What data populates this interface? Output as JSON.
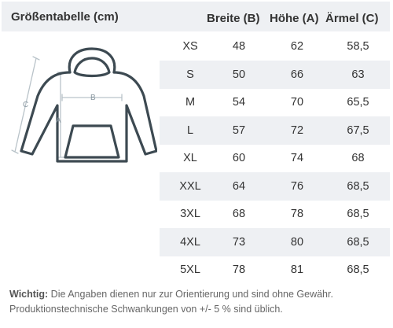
{
  "table": {
    "title": "Größentabelle (cm)",
    "headers": {
      "width": "Breite (B)",
      "height": "Höhe (A)",
      "sleeve": "Ärmel (C)"
    },
    "rows": [
      {
        "size": "XS",
        "width": "48",
        "height": "62",
        "sleeve": "58,5"
      },
      {
        "size": "S",
        "width": "50",
        "height": "66",
        "sleeve": "63"
      },
      {
        "size": "M",
        "width": "54",
        "height": "70",
        "sleeve": "65,5"
      },
      {
        "size": "L",
        "width": "57",
        "height": "72",
        "sleeve": "67,5"
      },
      {
        "size": "XL",
        "width": "60",
        "height": "74",
        "sleeve": "68"
      },
      {
        "size": "XXL",
        "width": "64",
        "height": "76",
        "sleeve": "68,5"
      },
      {
        "size": "3XL",
        "width": "68",
        "height": "78",
        "sleeve": "68,5"
      },
      {
        "size": "4XL",
        "width": "73",
        "height": "80",
        "sleeve": "68,5"
      },
      {
        "size": "5XL",
        "width": "78",
        "height": "81",
        "sleeve": "68,5"
      }
    ]
  },
  "illustration": {
    "label_a": "A",
    "label_b": "B",
    "label_c": "C",
    "outline_color": "#3d4a52",
    "guide_color": "#b9c3c9"
  },
  "note": {
    "label": "Wichtig:",
    "text": "Die Angaben dienen nur zur Orientierung und sind ohne Gewähr. Produktionstechnische Schwankungen von +/- 5 % sind üblich."
  },
  "colors": {
    "header_bg": "#eef0f3",
    "row_shade": "#eef0f3",
    "text": "#333333"
  }
}
